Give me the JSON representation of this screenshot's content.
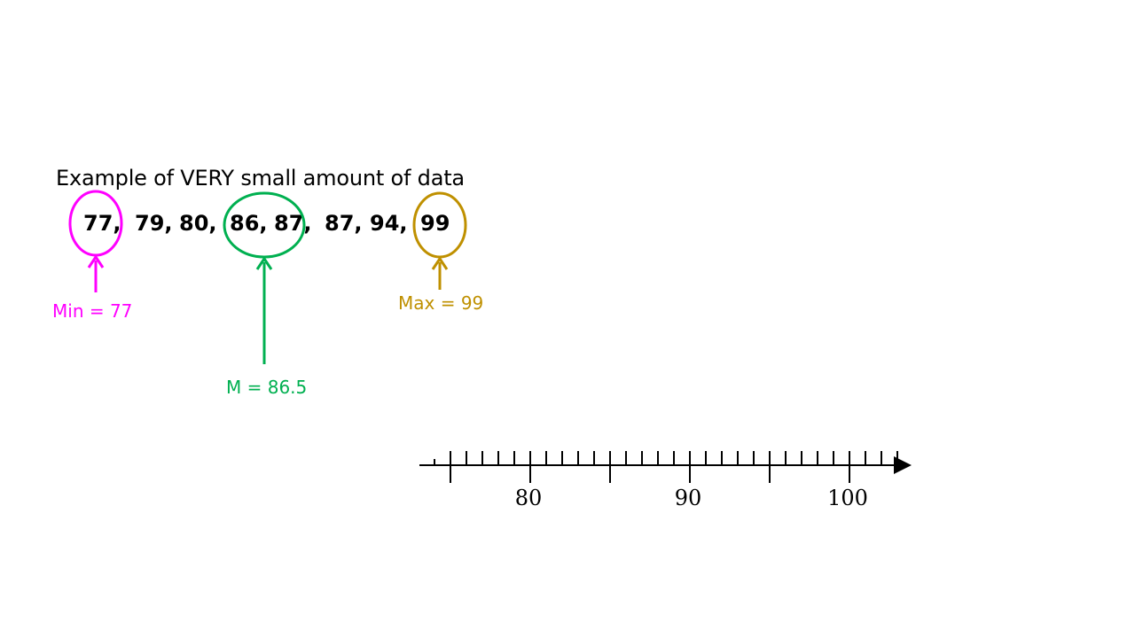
{
  "slide": {
    "title": "Example of VERY small amount of data"
  },
  "data_values": [
    "77,",
    "79,",
    "80,",
    "86,",
    "87,",
    "87,",
    "94,",
    "99"
  ],
  "statistics": {
    "min": {
      "label": "Min = 77",
      "color": "#FF00FF"
    },
    "median": {
      "label": "M = 86.5",
      "color": "#00B050"
    },
    "max": {
      "label": "Max = 99",
      "color": "#BF9000"
    }
  },
  "number_line": {
    "min": 75,
    "max": 103,
    "minor_step": 1,
    "major_step": 5,
    "labels": [
      "80",
      "90",
      "100"
    ],
    "label_values": [
      80,
      90,
      100
    ]
  }
}
